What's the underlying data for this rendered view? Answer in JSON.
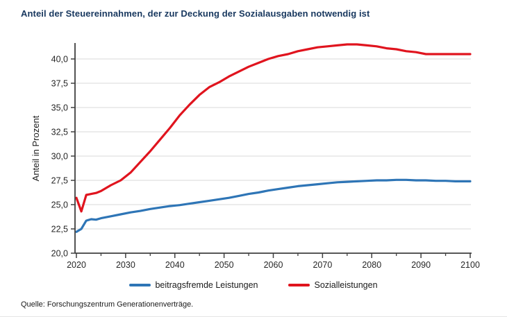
{
  "title": "Anteil der Steuereinnahmen, der zur Deckung der Sozialausgaben notwendig ist",
  "source": "Quelle: Forschungszentrum Generationenverträge.",
  "colors": {
    "title": "#17375e",
    "grid": "#d9d9d9",
    "axis": "#3f3f3f",
    "tick_text": "#262626",
    "blue_series": "#2e75b6",
    "red_series": "#e0141e"
  },
  "chart_data": {
    "type": "line",
    "title": "Anteil der Steuereinnahmen, der zur Deckung der Sozialausgaben notwendig ist",
    "xlabel": "",
    "ylabel": "Anteil in Prozent",
    "xlim": [
      2020,
      2100
    ],
    "ylim": [
      20,
      42
    ],
    "grid": "horizontal",
    "legend_position": "bottom",
    "x_major_ticks": [
      2020,
      2030,
      2040,
      2050,
      2060,
      2070,
      2080,
      2090,
      2100
    ],
    "x_minor_ticks": [
      2025,
      2035,
      2045,
      2055,
      2065,
      2075,
      2085,
      2095
    ],
    "y_ticks": [
      20,
      22.5,
      25,
      27.5,
      30,
      32.5,
      35,
      37.5,
      40
    ],
    "y_tick_labels": [
      "20,0",
      "22,5",
      "25,0",
      "27,5",
      "30,0",
      "32,5",
      "35,0",
      "37,5",
      "40,0"
    ],
    "x": [
      2020,
      2021,
      2022,
      2023,
      2024,
      2025,
      2027,
      2029,
      2031,
      2033,
      2035,
      2037,
      2039,
      2041,
      2043,
      2045,
      2047,
      2049,
      2051,
      2053,
      2055,
      2057,
      2059,
      2061,
      2063,
      2065,
      2067,
      2069,
      2071,
      2073,
      2075,
      2077,
      2079,
      2081,
      2083,
      2085,
      2087,
      2089,
      2091,
      2093,
      2095,
      2097,
      2100
    ],
    "series": [
      {
        "name": "beitragsfremde Leistungen",
        "color": "#2e75b6",
        "values": [
          22.2,
          22.5,
          23.35,
          23.5,
          23.45,
          23.6,
          23.8,
          24.0,
          24.2,
          24.35,
          24.55,
          24.7,
          24.85,
          24.95,
          25.1,
          25.25,
          25.4,
          25.55,
          25.7,
          25.9,
          26.1,
          26.25,
          26.45,
          26.6,
          26.75,
          26.9,
          27.0,
          27.1,
          27.2,
          27.3,
          27.35,
          27.4,
          27.45,
          27.5,
          27.5,
          27.55,
          27.55,
          27.5,
          27.5,
          27.45,
          27.45,
          27.4,
          27.4
        ]
      },
      {
        "name": "Sozialleistungen",
        "color": "#e0141e",
        "values": [
          25.7,
          24.3,
          26.0,
          26.1,
          26.2,
          26.4,
          27.0,
          27.5,
          28.3,
          29.4,
          30.5,
          31.7,
          32.9,
          34.2,
          35.3,
          36.3,
          37.1,
          37.6,
          38.2,
          38.7,
          39.2,
          39.6,
          40.0,
          40.3,
          40.5,
          40.8,
          41.0,
          41.2,
          41.3,
          41.4,
          41.5,
          41.5,
          41.4,
          41.3,
          41.1,
          41.0,
          40.8,
          40.7,
          40.5,
          40.5,
          40.5,
          40.5,
          40.5
        ]
      }
    ]
  }
}
